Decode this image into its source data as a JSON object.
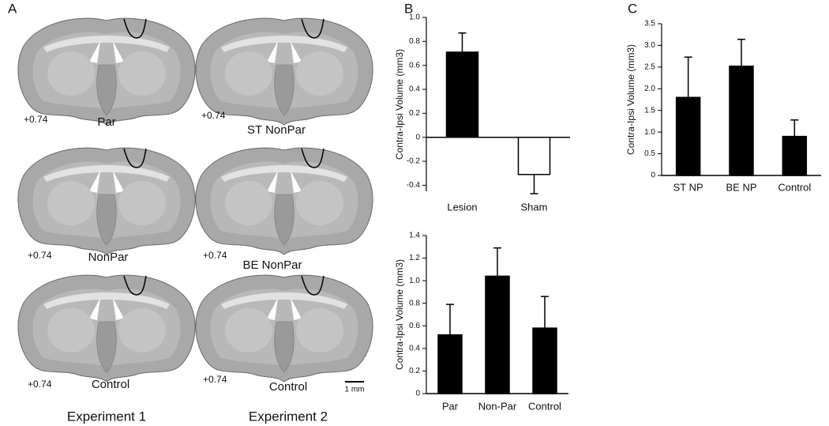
{
  "panel_labels": [
    "A",
    "B",
    "C"
  ],
  "sections": [
    {
      "coordinate": "+0.74",
      "label": "Par"
    },
    {
      "coordinate": "+0.74",
      "label": "ST NonPar"
    },
    {
      "coordinate": "+0.74",
      "label": "NonPar"
    },
    {
      "coordinate": "+0.74",
      "label": "BE NonPar"
    },
    {
      "coordinate": "+0.74",
      "label": "Control"
    },
    {
      "coordinate": "+0.74",
      "label": "Control"
    }
  ],
  "scale_bar": "1 mm",
  "experiments": [
    "Experiment 1",
    "Experiment 2"
  ],
  "chart_data": [
    {
      "type": "bar",
      "y_label": "Contra-Ipsi Volume (mm3)",
      "categories": [
        "Lesion",
        "Sham"
      ],
      "values": [
        0.71,
        -0.31
      ],
      "errors": [
        0.16,
        0.16
      ],
      "colors": [
        "#000000",
        "#ffffff"
      ],
      "ylim": [
        -0.45,
        1.0
      ],
      "yticks": [
        -0.4,
        -0.2,
        0,
        0.2,
        0.4,
        0.6,
        0.8,
        {
          "value": 1.0,
          "label": "1.0"
        }
      ]
    },
    {
      "type": "bar",
      "y_label": "Contra-Ipsi Volume (mm3)",
      "categories": [
        "Par",
        "Non-Par",
        "Control"
      ],
      "values": [
        0.52,
        1.04,
        0.58
      ],
      "errors": [
        0.27,
        0.25,
        0.28
      ],
      "colors": [
        "#000000",
        "#000000",
        "#000000"
      ],
      "ylim": [
        0,
        1.4
      ],
      "yticks": [
        0,
        0.2,
        0.4,
        0.6,
        0.8,
        {
          "value": 1.0,
          "label": "1.0"
        },
        1.2,
        1.4
      ]
    },
    {
      "type": "bar",
      "y_label": "Contra-Ipsi Volume (mm3)",
      "categories": [
        "ST NP",
        "BE NP",
        "Control"
      ],
      "values": [
        1.8,
        2.52,
        0.9
      ],
      "errors": [
        0.93,
        0.62,
        0.38
      ],
      "colors": [
        "#000000",
        "#000000",
        "#000000"
      ],
      "ylim": [
        0,
        3.5
      ],
      "yticks": [
        0,
        0.5,
        {
          "value": 1.0,
          "label": "1.0"
        },
        1.5,
        {
          "value": 2.0,
          "label": "2.0"
        },
        2.5,
        {
          "value": 3.0,
          "label": "3.0"
        },
        3.5
      ]
    }
  ]
}
